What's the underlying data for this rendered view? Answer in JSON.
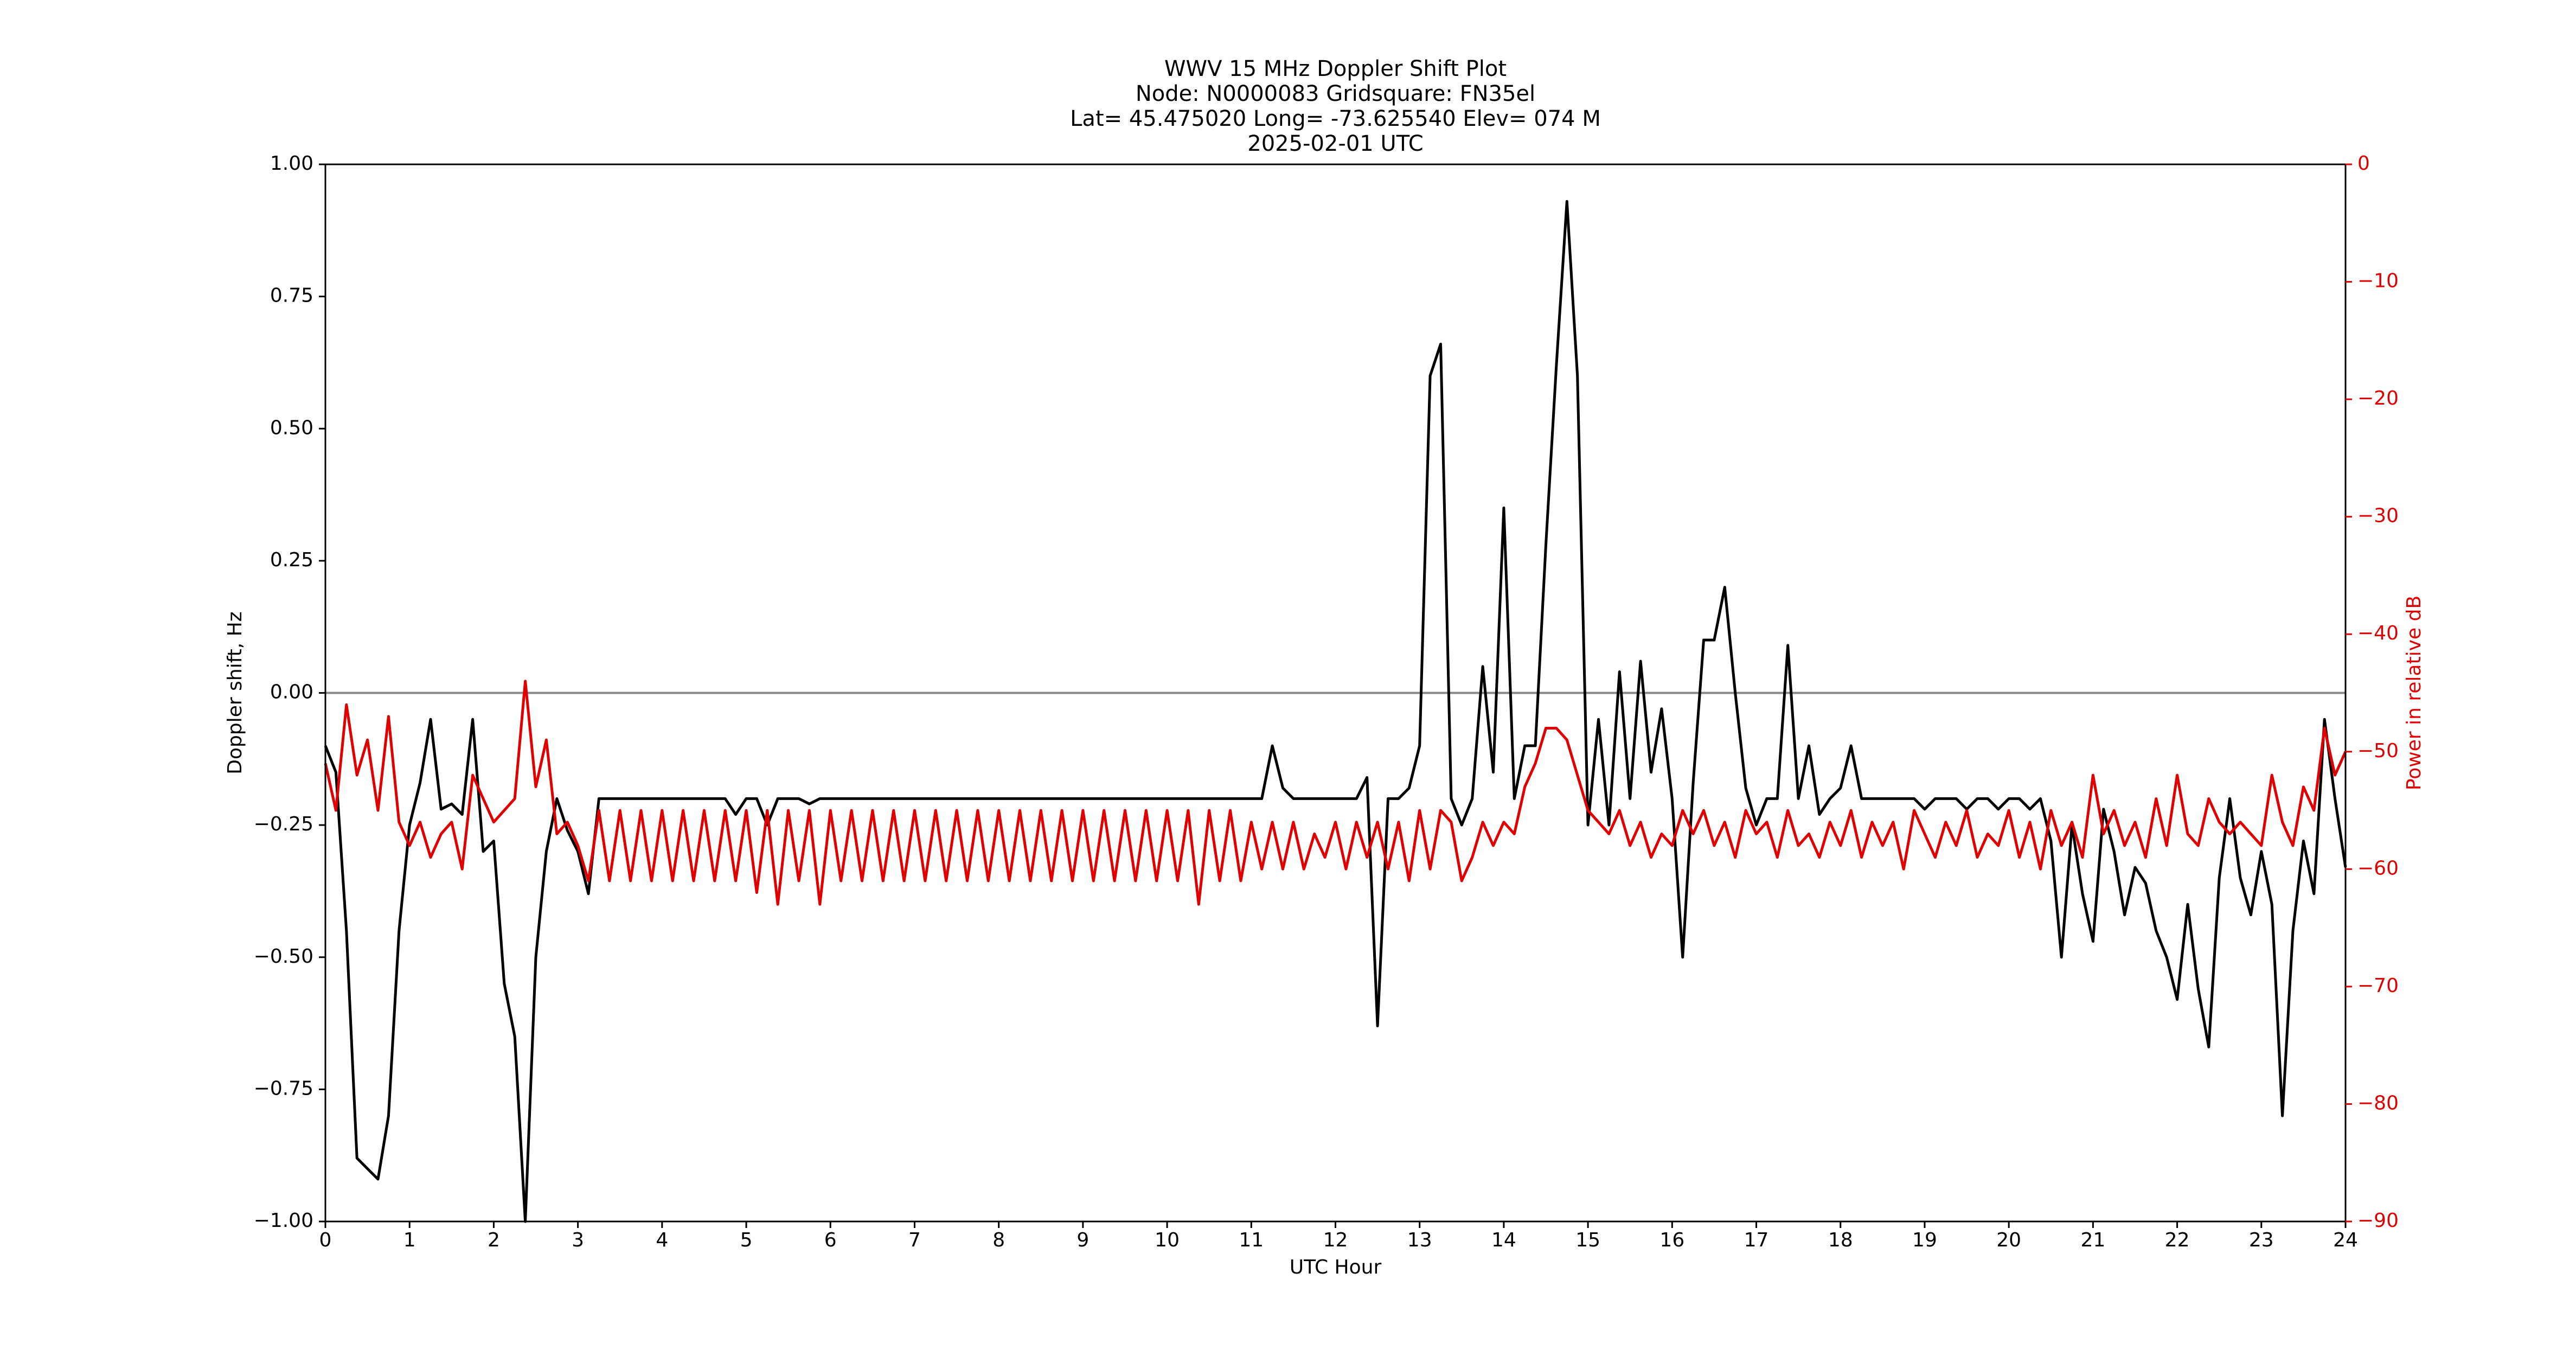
{
  "chart_data": {
    "type": "line",
    "title": [
      "WWV 15 MHz Doppler Shift Plot",
      "Node:  N0000083     Gridsquare:  FN35el",
      "Lat= 45.475020    Long= -73.625540    Elev= 074 M",
      "2025-02-01  UTC"
    ],
    "xlabel": "UTC Hour",
    "ylabel": "Doppler shift, Hz",
    "y2label": "Power in relative dB",
    "xlim": [
      0,
      24
    ],
    "xticks": [
      0,
      1,
      2,
      3,
      4,
      5,
      6,
      7,
      8,
      9,
      10,
      11,
      12,
      13,
      14,
      15,
      16,
      17,
      18,
      19,
      20,
      21,
      22,
      23,
      24
    ],
    "ylim": [
      -1,
      1
    ],
    "yticks": [
      {
        "value": -1,
        "label": "−1.00"
      },
      {
        "value": -0.75,
        "label": "−0.75"
      },
      {
        "value": -0.5,
        "label": "−0.50"
      },
      {
        "value": -0.25,
        "label": "−0.25"
      },
      {
        "value": 0,
        "label": "0.00"
      },
      {
        "value": 0.25,
        "label": "0.25"
      },
      {
        "value": 0.5,
        "label": "0.50"
      },
      {
        "value": 0.75,
        "label": "0.75"
      },
      {
        "value": 1,
        "label": "1.00"
      }
    ],
    "y2lim": [
      -90,
      0
    ],
    "y2ticks": [
      {
        "value": -90,
        "label": "−90"
      },
      {
        "value": -80,
        "label": "−80"
      },
      {
        "value": -70,
        "label": "−70"
      },
      {
        "value": -60,
        "label": "−60"
      },
      {
        "value": -50,
        "label": "−50"
      },
      {
        "value": -40,
        "label": "−40"
      },
      {
        "value": -30,
        "label": "−30"
      },
      {
        "value": -20,
        "label": "−20"
      },
      {
        "value": -10,
        "label": "−10"
      },
      0
    ],
    "y2color": "#e00000",
    "hlines": [
      0
    ],
    "hline_color": "#888888",
    "x": [
      0,
      0.125,
      0.25,
      0.375,
      0.5,
      0.625,
      0.75,
      0.875,
      1,
      1.125,
      1.25,
      1.375,
      1.5,
      1.625,
      1.75,
      1.875,
      2,
      2.125,
      2.25,
      2.375,
      2.5,
      2.625,
      2.75,
      2.875,
      3,
      3.125,
      3.25,
      3.375,
      3.5,
      3.625,
      3.75,
      3.875,
      4,
      4.125,
      4.25,
      4.375,
      4.5,
      4.625,
      4.75,
      4.875,
      5,
      5.125,
      5.25,
      5.375,
      5.5,
      5.625,
      5.75,
      5.875,
      6,
      6.125,
      6.25,
      6.375,
      6.5,
      6.625,
      6.75,
      6.875,
      7,
      7.125,
      7.25,
      7.375,
      7.5,
      7.625,
      7.75,
      7.875,
      8,
      8.125,
      8.25,
      8.375,
      8.5,
      8.625,
      8.75,
      8.875,
      9,
      9.125,
      9.25,
      9.375,
      9.5,
      9.625,
      9.75,
      9.875,
      10,
      10.125,
      10.25,
      10.375,
      10.5,
      10.625,
      10.75,
      10.875,
      11,
      11.125,
      11.25,
      11.375,
      11.5,
      11.625,
      11.75,
      11.875,
      12,
      12.125,
      12.25,
      12.375,
      12.5,
      12.625,
      12.75,
      12.875,
      13,
      13.125,
      13.25,
      13.375,
      13.5,
      13.625,
      13.75,
      13.875,
      14,
      14.125,
      14.25,
      14.375,
      14.5,
      14.625,
      14.75,
      14.875,
      15,
      15.125,
      15.25,
      15.375,
      15.5,
      15.625,
      15.75,
      15.875,
      16,
      16.125,
      16.25,
      16.375,
      16.5,
      16.625,
      16.75,
      16.875,
      17,
      17.125,
      17.25,
      17.375,
      17.5,
      17.625,
      17.75,
      17.875,
      18,
      18.125,
      18.25,
      18.375,
      18.5,
      18.625,
      18.75,
      18.875,
      19,
      19.125,
      19.25,
      19.375,
      19.5,
      19.625,
      19.75,
      19.875,
      20,
      20.125,
      20.25,
      20.375,
      20.5,
      20.625,
      20.75,
      20.875,
      21,
      21.125,
      21.25,
      21.375,
      21.5,
      21.625,
      21.75,
      21.875,
      22,
      22.125,
      22.25,
      22.375,
      22.5,
      22.625,
      22.75,
      22.875,
      23,
      23.125,
      23.25,
      23.375,
      23.5,
      23.625,
      23.75,
      23.875,
      24
    ],
    "series": [
      {
        "color": "#000000",
        "values": [
          -0.1,
          -0.15,
          -0.45,
          -0.88,
          -0.9,
          -0.92,
          -0.8,
          -0.45,
          -0.25,
          -0.17,
          -0.05,
          -0.22,
          -0.21,
          -0.23,
          -0.05,
          -0.3,
          -0.28,
          -0.55,
          -0.65,
          -1.0,
          -0.5,
          -0.3,
          -0.2,
          -0.26,
          -0.3,
          -0.38,
          -0.2,
          -0.2,
          -0.2,
          -0.2,
          -0.2,
          -0.2,
          -0.2,
          -0.2,
          -0.2,
          -0.2,
          -0.2,
          -0.2,
          -0.2,
          -0.23,
          -0.2,
          -0.2,
          -0.25,
          -0.2,
          -0.2,
          -0.2,
          -0.21,
          -0.2,
          -0.2,
          -0.2,
          -0.2,
          -0.2,
          -0.2,
          -0.2,
          -0.2,
          -0.2,
          -0.2,
          -0.2,
          -0.2,
          -0.2,
          -0.2,
          -0.2,
          -0.2,
          -0.2,
          -0.2,
          -0.2,
          -0.2,
          -0.2,
          -0.2,
          -0.2,
          -0.2,
          -0.2,
          -0.2,
          -0.2,
          -0.2,
          -0.2,
          -0.2,
          -0.2,
          -0.2,
          -0.2,
          -0.2,
          -0.2,
          -0.2,
          -0.2,
          -0.2,
          -0.2,
          -0.2,
          -0.2,
          -0.2,
          -0.2,
          -0.1,
          -0.18,
          -0.2,
          -0.2,
          -0.2,
          -0.2,
          -0.2,
          -0.2,
          -0.2,
          -0.16,
          -0.63,
          -0.2,
          -0.2,
          -0.18,
          -0.1,
          0.6,
          0.66,
          -0.2,
          -0.25,
          -0.2,
          0.05,
          -0.15,
          0.35,
          -0.2,
          -0.1,
          -0.1,
          0.28,
          0.62,
          0.93,
          0.6,
          -0.25,
          -0.05,
          -0.25,
          0.04,
          -0.2,
          0.06,
          -0.15,
          -0.03,
          -0.2,
          -0.5,
          -0.17,
          0.1,
          0.1,
          0.2,
          0.0,
          -0.18,
          -0.25,
          -0.2,
          -0.2,
          0.09,
          -0.2,
          -0.1,
          -0.23,
          -0.2,
          -0.18,
          -0.1,
          -0.2,
          -0.2,
          -0.2,
          -0.2,
          -0.2,
          -0.2,
          -0.22,
          -0.2,
          -0.2,
          -0.2,
          -0.22,
          -0.2,
          -0.2,
          -0.22,
          -0.2,
          -0.2,
          -0.22,
          -0.2,
          -0.28,
          -0.5,
          -0.25,
          -0.38,
          -0.47,
          -0.22,
          -0.3,
          -0.42,
          -0.33,
          -0.36,
          -0.45,
          -0.5,
          -0.58,
          -0.4,
          -0.56,
          -0.67,
          -0.35,
          -0.2,
          -0.35,
          -0.42,
          -0.3,
          -0.4,
          -0.8,
          -0.45,
          -0.28,
          -0.38,
          -0.05,
          -0.2,
          -0.33
        ]
      },
      {
        "color": "#e00000",
        "axis": "y2",
        "values": [
          -51,
          -55,
          -46,
          -52,
          -49,
          -55,
          -47,
          -56,
          -58,
          -56,
          -59,
          -57,
          -56,
          -60,
          -52,
          -54,
          -56,
          -55,
          -54,
          -44,
          -53,
          -49,
          -57,
          -56,
          -58,
          -61,
          -55,
          -61,
          -55,
          -61,
          -55,
          -61,
          -55,
          -61,
          -55,
          -61,
          -55,
          -61,
          -55,
          -61,
          -55,
          -62,
          -55,
          -63,
          -55,
          -61,
          -55,
          -63,
          -55,
          -61,
          -55,
          -61,
          -55,
          -61,
          -55,
          -61,
          -55,
          -61,
          -55,
          -61,
          -55,
          -61,
          -55,
          -61,
          -55,
          -61,
          -55,
          -61,
          -55,
          -61,
          -55,
          -61,
          -55,
          -61,
          -55,
          -61,
          -55,
          -61,
          -55,
          -61,
          -55,
          -61,
          -55,
          -63,
          -55,
          -61,
          -55,
          -61,
          -56,
          -60,
          -56,
          -60,
          -56,
          -60,
          -57,
          -59,
          -56,
          -60,
          -56,
          -59,
          -56,
          -60,
          -56,
          -61,
          -55,
          -60,
          -55,
          -56,
          -61,
          -59,
          -56,
          -58,
          -56,
          -57,
          -53,
          -51,
          -48,
          -48,
          -49,
          -52,
          -55,
          -56,
          -57,
          -55,
          -58,
          -56,
          -59,
          -57,
          -58,
          -55,
          -57,
          -55,
          -58,
          -56,
          -59,
          -55,
          -57,
          -56,
          -59,
          -55,
          -58,
          -57,
          -59,
          -56,
          -58,
          -55,
          -59,
          -56,
          -58,
          -56,
          -60,
          -55,
          -57,
          -59,
          -56,
          -58,
          -55,
          -59,
          -57,
          -58,
          -55,
          -59,
          -56,
          -60,
          -55,
          -58,
          -56,
          -59,
          -52,
          -57,
          -55,
          -58,
          -56,
          -59,
          -54,
          -58,
          -52,
          -57,
          -58,
          -54,
          -56,
          -57,
          -56,
          -57,
          -58,
          -52,
          -56,
          -58,
          -53,
          -55,
          -48,
          -52,
          -50
        ]
      }
    ]
  }
}
